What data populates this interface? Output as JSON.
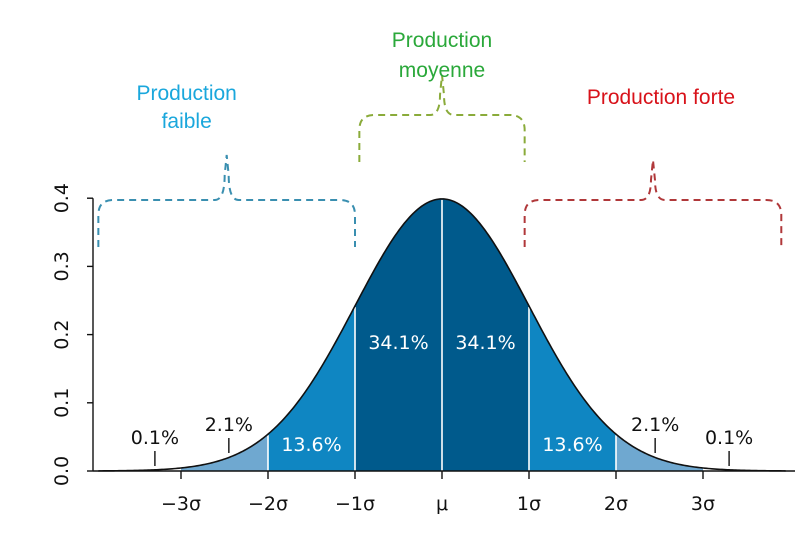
{
  "chart_data": {
    "type": "area",
    "title": "",
    "xlabel": "",
    "ylabel": "",
    "xlim": [
      -3.95,
      3.95
    ],
    "ylim": [
      0,
      0.4
    ],
    "x_ticks": [
      {
        "value": -3,
        "label": "−3σ"
      },
      {
        "value": -2,
        "label": "−2σ"
      },
      {
        "value": -1,
        "label": "−1σ"
      },
      {
        "value": 0,
        "label": "μ"
      },
      {
        "value": 1,
        "label": "1σ"
      },
      {
        "value": 2,
        "label": "2σ"
      },
      {
        "value": 3,
        "label": "3σ"
      }
    ],
    "y_ticks": [
      {
        "value": 0,
        "label": "0.0"
      },
      {
        "value": 0.1,
        "label": "0.1"
      },
      {
        "value": 0.2,
        "label": "0.2"
      },
      {
        "value": 0.3,
        "label": "0.3"
      },
      {
        "value": 0.4,
        "label": "0.4"
      }
    ],
    "curve": {
      "distribution": "normal",
      "mean": 0,
      "sd": 1
    },
    "segments": [
      {
        "from": -3,
        "to": -2,
        "color": "#6fa8d0"
      },
      {
        "from": -2,
        "to": -1,
        "color": "#0f86c2"
      },
      {
        "from": -1,
        "to": 0,
        "color": "#005a8c"
      },
      {
        "from": 0,
        "to": 1,
        "color": "#005a8c"
      },
      {
        "from": 1,
        "to": 2,
        "color": "#0f86c2"
      },
      {
        "from": 2,
        "to": 3,
        "color": "#6fa8d0"
      }
    ],
    "percent_labels": [
      {
        "text": "0.1%",
        "x": -3.3,
        "side": "outside"
      },
      {
        "text": "2.1%",
        "x": -2.45,
        "side": "outside"
      },
      {
        "text": "13.6%",
        "x": -1.5,
        "side": "inside"
      },
      {
        "text": "34.1%",
        "x": -0.5,
        "side": "inside"
      },
      {
        "text": "34.1%",
        "x": 0.5,
        "side": "inside"
      },
      {
        "text": "13.6%",
        "x": 1.5,
        "side": "inside"
      },
      {
        "text": "2.1%",
        "x": 2.45,
        "side": "outside"
      },
      {
        "text": "0.1%",
        "x": 3.3,
        "side": "outside"
      }
    ],
    "categories": [
      {
        "line1": "Production",
        "line2": "faible",
        "color": "#1aa7dc",
        "bracket_color": "#3a8fb0",
        "from": -3.95,
        "to": -1
      },
      {
        "line1": "Production",
        "line2": "moyenne",
        "color": "#2aa83a",
        "bracket_color": "#8aab3a",
        "from": -0.95,
        "to": 0.95
      },
      {
        "line1": "Production forte",
        "line2": "",
        "color": "#d8121a",
        "bracket_color": "#b0383a",
        "from": 0.95,
        "to": 3.9
      }
    ]
  }
}
